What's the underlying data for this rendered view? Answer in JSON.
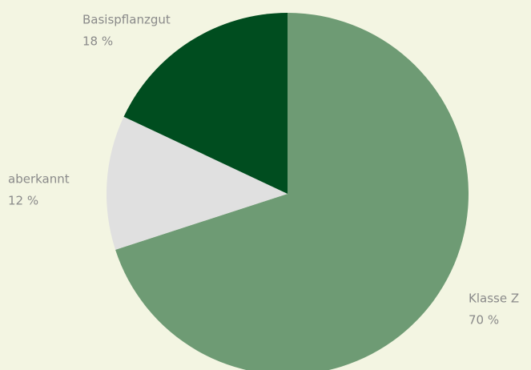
{
  "chart_data": {
    "type": "pie",
    "categories": [
      "Klasse Z",
      "aberkannt",
      "Basispflanzgut"
    ],
    "values": [
      70,
      12,
      18
    ],
    "value_labels": [
      "70 %",
      "12 %",
      "18 %"
    ],
    "colors": [
      "#6e9b74",
      "#e0e0e0",
      "#004d1f"
    ]
  }
}
